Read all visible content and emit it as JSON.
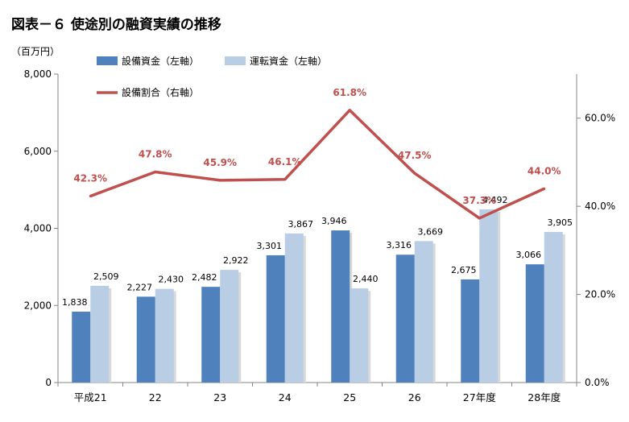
{
  "title": "図表－６ 使途別の融資実績の推移",
  "chart_data": {
    "type": "bar",
    "title": "図表－６ 使途別の融資実績の推移",
    "y_unit_label": "（百万円）",
    "categories": [
      "平成21",
      "22",
      "23",
      "24",
      "25",
      "26",
      "27年度",
      "28年度"
    ],
    "series": [
      {
        "name": "設備資金（左軸）",
        "type": "bar",
        "axis": "left",
        "color": "#4f81bd",
        "values": [
          1838,
          2227,
          2482,
          3301,
          3946,
          3316,
          2675,
          3066
        ],
        "labels": [
          "1,838",
          "2,227",
          "2,482",
          "3,301",
          "3,946",
          "3,316",
          "2,675",
          "3,066"
        ]
      },
      {
        "name": "運転資金（左軸）",
        "type": "bar",
        "axis": "left",
        "color": "#b9cde5",
        "values": [
          2509,
          2430,
          2922,
          3867,
          2440,
          3669,
          4492,
          3905
        ],
        "labels": [
          "2,509",
          "2,430",
          "2,922",
          "3,867",
          "2,440",
          "3,669",
          "4,492",
          "3,905"
        ]
      },
      {
        "name": "設備割合（右軸）",
        "type": "line",
        "axis": "right",
        "color": "#c0504d",
        "values": [
          42.3,
          47.8,
          45.9,
          46.1,
          61.8,
          47.5,
          37.3,
          44.0
        ],
        "labels": [
          "42.3%",
          "47.8%",
          "45.9%",
          "46.1%",
          "61.8%",
          "47.5%",
          "37.3%",
          "44.0%"
        ]
      }
    ],
    "y_left": {
      "min": 0,
      "max": 8000,
      "ticks": [
        0,
        2000,
        4000,
        6000,
        8000
      ],
      "tick_labels": [
        "0",
        "2,000",
        "4,000",
        "6,000",
        "8,000"
      ]
    },
    "y_right": {
      "min": 0,
      "max": 70,
      "ticks": [
        0,
        20,
        40,
        60
      ],
      "tick_labels": [
        "0.0%",
        "20.0%",
        "40.0%",
        "60.0%"
      ]
    },
    "grid": false,
    "legend_position": "top-left"
  }
}
